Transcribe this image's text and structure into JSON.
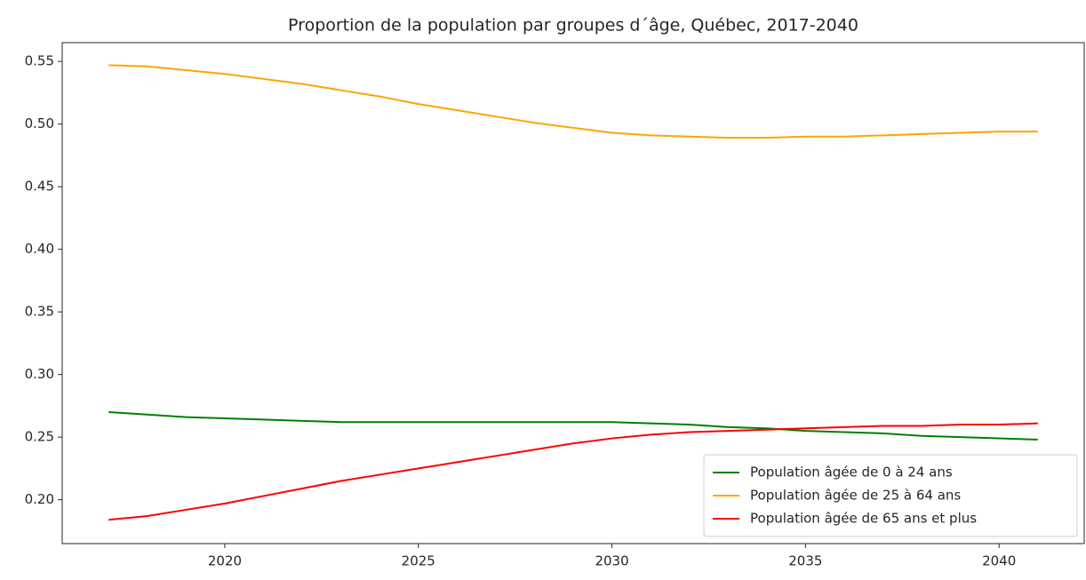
{
  "chart_data": {
    "type": "line",
    "title": "Proportion de la population par groupes d´âge, Québec, 2017-2040",
    "x": [
      2017,
      2018,
      2019,
      2020,
      2021,
      2022,
      2023,
      2024,
      2025,
      2026,
      2027,
      2028,
      2029,
      2030,
      2031,
      2032,
      2033,
      2034,
      2035,
      2036,
      2037,
      2038,
      2039,
      2040,
      2041
    ],
    "series": [
      {
        "name": "Population âgée de 0 à 24 ans",
        "color": "#008000",
        "values": [
          0.27,
          0.268,
          0.266,
          0.265,
          0.264,
          0.263,
          0.262,
          0.262,
          0.262,
          0.262,
          0.262,
          0.262,
          0.262,
          0.262,
          0.261,
          0.26,
          0.258,
          0.257,
          0.255,
          0.254,
          0.253,
          0.251,
          0.25,
          0.249,
          0.248
        ]
      },
      {
        "name": "Population âgée de 25 à 64 ans",
        "color": "#ffa500",
        "values": [
          0.547,
          0.546,
          0.543,
          0.54,
          0.536,
          0.532,
          0.527,
          0.522,
          0.516,
          0.511,
          0.506,
          0.501,
          0.497,
          0.493,
          0.491,
          0.49,
          0.489,
          0.489,
          0.49,
          0.49,
          0.491,
          0.492,
          0.493,
          0.494,
          0.494
        ]
      },
      {
        "name": "Population âgée de 65 ans et plus",
        "color": "#ff0000",
        "values": [
          0.184,
          0.187,
          0.192,
          0.197,
          0.203,
          0.209,
          0.215,
          0.22,
          0.225,
          0.23,
          0.235,
          0.24,
          0.245,
          0.249,
          0.252,
          0.254,
          0.255,
          0.256,
          0.257,
          0.258,
          0.259,
          0.259,
          0.26,
          0.26,
          0.261
        ]
      }
    ],
    "xlim": [
      2015.8,
      2042.2
    ],
    "xticks": [
      2020,
      2025,
      2030,
      2035,
      2040
    ],
    "ylim": [
      0.165,
      0.565
    ],
    "yticks": [
      {
        "value": 0.2,
        "label": "0.20"
      },
      {
        "value": 0.25,
        "label": "0.25"
      },
      {
        "value": 0.3,
        "label": "0.30"
      },
      {
        "value": 0.35,
        "label": "0.35"
      },
      {
        "value": 0.4,
        "label": "0.40"
      },
      {
        "value": 0.45,
        "label": "0.45"
      },
      {
        "value": 0.5,
        "label": "0.50"
      },
      {
        "value": 0.55,
        "label": "0.55"
      }
    ],
    "grid": false,
    "legend_loc": "lower right"
  }
}
